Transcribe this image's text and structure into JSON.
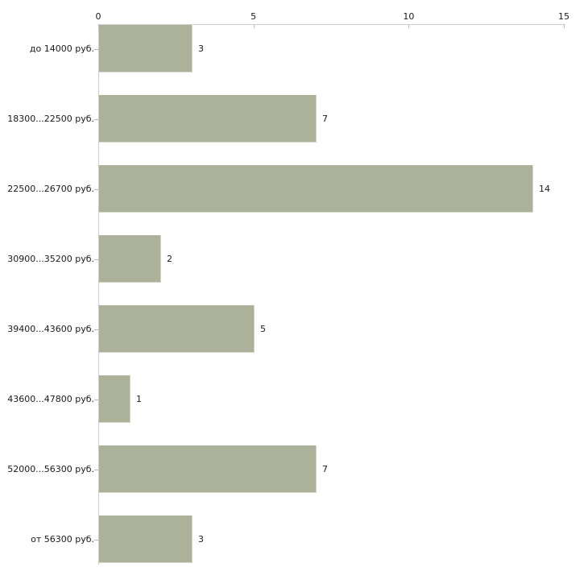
{
  "chart_data": {
    "type": "bar",
    "orientation": "horizontal",
    "title": "",
    "xlabel": "",
    "ylabel": "",
    "categories": [
      "до 14000 руб.",
      "18300...22500 руб.",
      "22500...26700 руб.",
      "30900...35200 руб.",
      "39400...43600 руб.",
      "43600...47800 руб.",
      "52000...56300 руб.",
      "от 56300 руб."
    ],
    "values": [
      3,
      7,
      14,
      2,
      5,
      1,
      7,
      3
    ],
    "value_labels": [
      "3",
      "7",
      "14",
      "2",
      "5",
      "1",
      "7",
      "3"
    ],
    "xlim": [
      0,
      15
    ],
    "x_ticks": [
      "0",
      "5",
      "10",
      "15"
    ],
    "x_tick_values": [
      0,
      5,
      10,
      15
    ],
    "grid": false,
    "legend": "none",
    "axis_position": "top",
    "colors": {
      "bar_fill": "#acb29a",
      "bar_edge": "#d3d6c9",
      "axis_line": "#cccccc",
      "tick_mark": "#bdc1a8",
      "text": "#1a1a1a",
      "background": "#ffffff"
    }
  }
}
